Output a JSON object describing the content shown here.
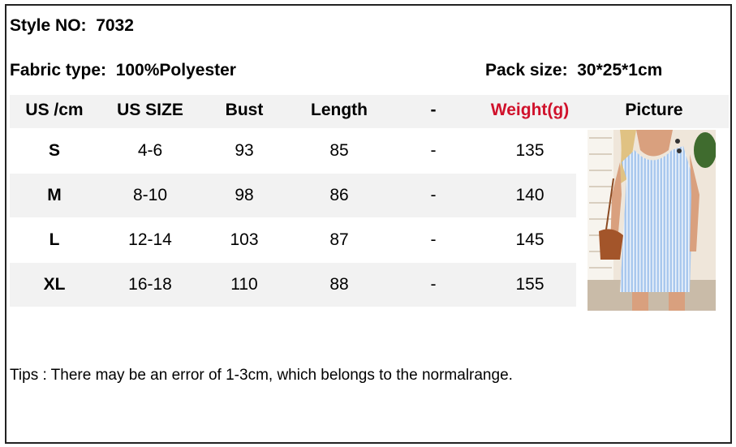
{
  "style_no": {
    "label": "Style NO:",
    "value": "7032"
  },
  "fabric": {
    "label": "Fabric type:",
    "value": "100%Polyester"
  },
  "pack": {
    "label": "Pack size:",
    "value": "30*25*1cm"
  },
  "headers": [
    "US /cm",
    "US SIZE",
    "Bust",
    "Length",
    "-",
    "Weight(g)",
    "Picture"
  ],
  "rows": [
    [
      "S",
      "4-6",
      "93",
      "85",
      "-",
      "135"
    ],
    [
      "M",
      "8-10",
      "98",
      "86",
      "-",
      "140"
    ],
    [
      "L",
      "12-14",
      "103",
      "87",
      "-",
      "145"
    ],
    [
      "XL",
      "16-18",
      "110",
      "88",
      "-",
      "155"
    ]
  ],
  "tips": "Tips : There may be an error of 1-3cm, which belongs to the normalrange.",
  "colors": {
    "weight_header": "#d0112b",
    "band": "#f2f2f2"
  }
}
